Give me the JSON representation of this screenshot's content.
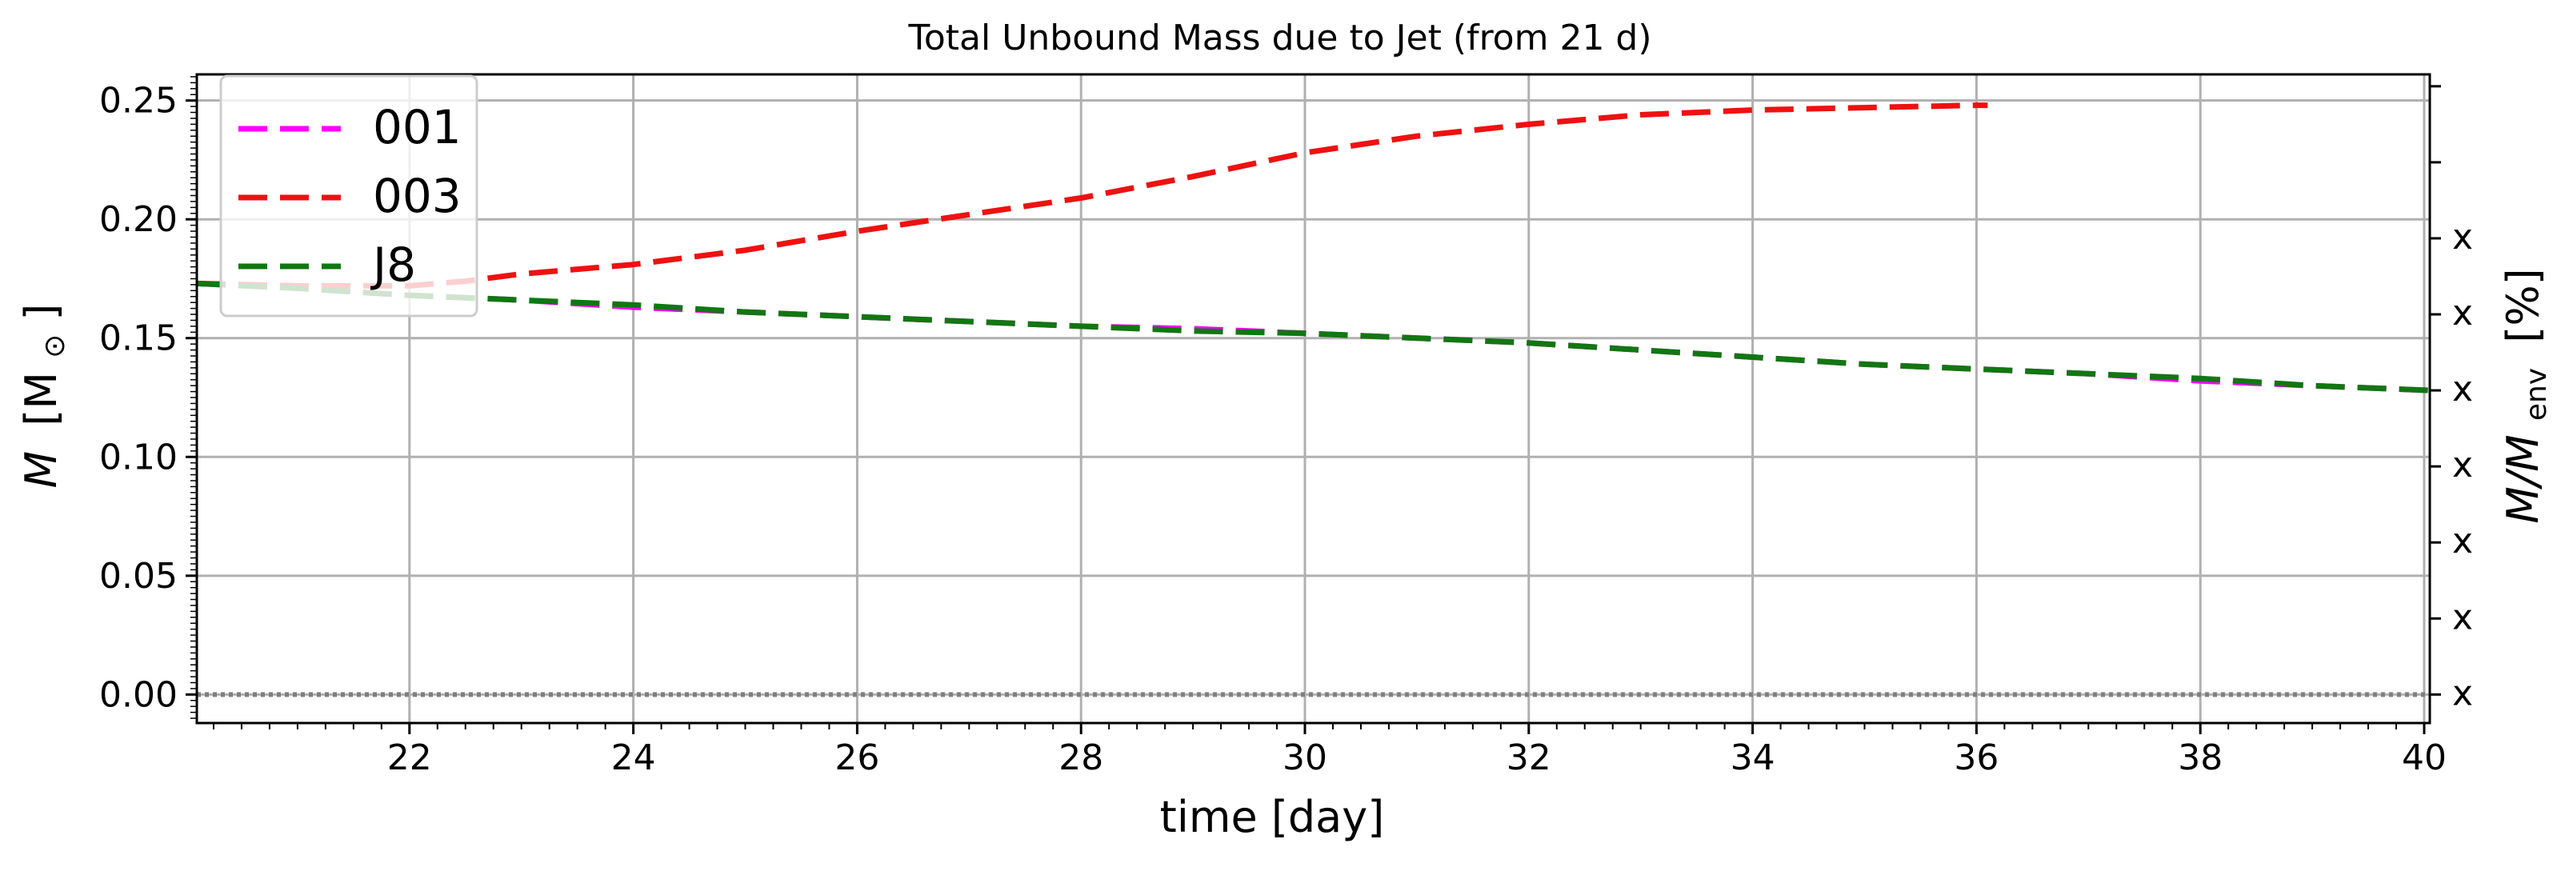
{
  "chart_data": {
    "type": "line",
    "title": "Total Unbound Mass due to Jet (from 21 d)",
    "xlabel": "time [day]",
    "ylabel_main": "M",
    "ylabel_unit": "[M",
    "ylabel_sun": "⊙",
    "ylabel_close": "]",
    "y2label_main": "M/M",
    "y2label_sub": "env",
    "y2label_unit": "[%]",
    "xlim": [
      20.1,
      40.05
    ],
    "ylim": [
      -0.012,
      0.261
    ],
    "grid": true,
    "legend_position": "top-left",
    "xticks": [
      22,
      24,
      26,
      28,
      30,
      32,
      34,
      36,
      38,
      40
    ],
    "xtick_labels": [
      "22",
      "24",
      "26",
      "28",
      "30",
      "32",
      "34",
      "36",
      "38",
      "40"
    ],
    "yticks": [
      0.0,
      0.05,
      0.1,
      0.15,
      0.2,
      0.25
    ],
    "ytick_labels": [
      "0.00",
      "0.05",
      "0.10",
      "0.15",
      "0.20",
      "0.25"
    ],
    "y2ticks": [
      0.0,
      0.032,
      0.064,
      0.096,
      0.128,
      0.16,
      0.192,
      0.224,
      0.256
    ],
    "y2tick_labels": [
      "x",
      "x",
      "x",
      "x",
      "x",
      "x",
      "x",
      "",
      ""
    ],
    "reference_line": {
      "y": 0.0,
      "color": "#808080"
    },
    "series": [
      {
        "name": "001",
        "color": "#ff00ff",
        "x": [
          20.1,
          21,
          22,
          23,
          24,
          25,
          26,
          27,
          28,
          29,
          30,
          31,
          32,
          33,
          34,
          35,
          36,
          37,
          38,
          39,
          40.05
        ],
        "y": [
          0.173,
          0.171,
          0.168,
          0.166,
          0.163,
          0.161,
          0.159,
          0.157,
          0.155,
          0.154,
          0.152,
          0.15,
          0.148,
          0.145,
          0.142,
          0.139,
          0.137,
          0.135,
          0.132,
          0.13,
          0.128
        ]
      },
      {
        "name": "003",
        "color": "#ee1111",
        "x": [
          20.1,
          21,
          22,
          22.5,
          23,
          24,
          25,
          26,
          27,
          28,
          29,
          30,
          31,
          32,
          33,
          34,
          35,
          36,
          36.1
        ],
        "y": [
          0.173,
          0.172,
          0.172,
          0.174,
          0.177,
          0.181,
          0.187,
          0.195,
          0.202,
          0.209,
          0.218,
          0.228,
          0.235,
          0.24,
          0.244,
          0.246,
          0.247,
          0.248,
          0.248
        ]
      },
      {
        "name": "J8",
        "color": "#117711",
        "x": [
          20.1,
          21,
          22,
          23,
          24,
          25,
          26,
          27,
          28,
          29,
          30,
          31,
          32,
          33,
          34,
          35,
          36,
          37,
          38,
          39,
          40.05
        ],
        "y": [
          0.173,
          0.171,
          0.168,
          0.166,
          0.164,
          0.161,
          0.159,
          0.157,
          0.155,
          0.153,
          0.152,
          0.15,
          0.148,
          0.145,
          0.142,
          0.139,
          0.137,
          0.135,
          0.133,
          0.13,
          0.128
        ]
      }
    ]
  }
}
